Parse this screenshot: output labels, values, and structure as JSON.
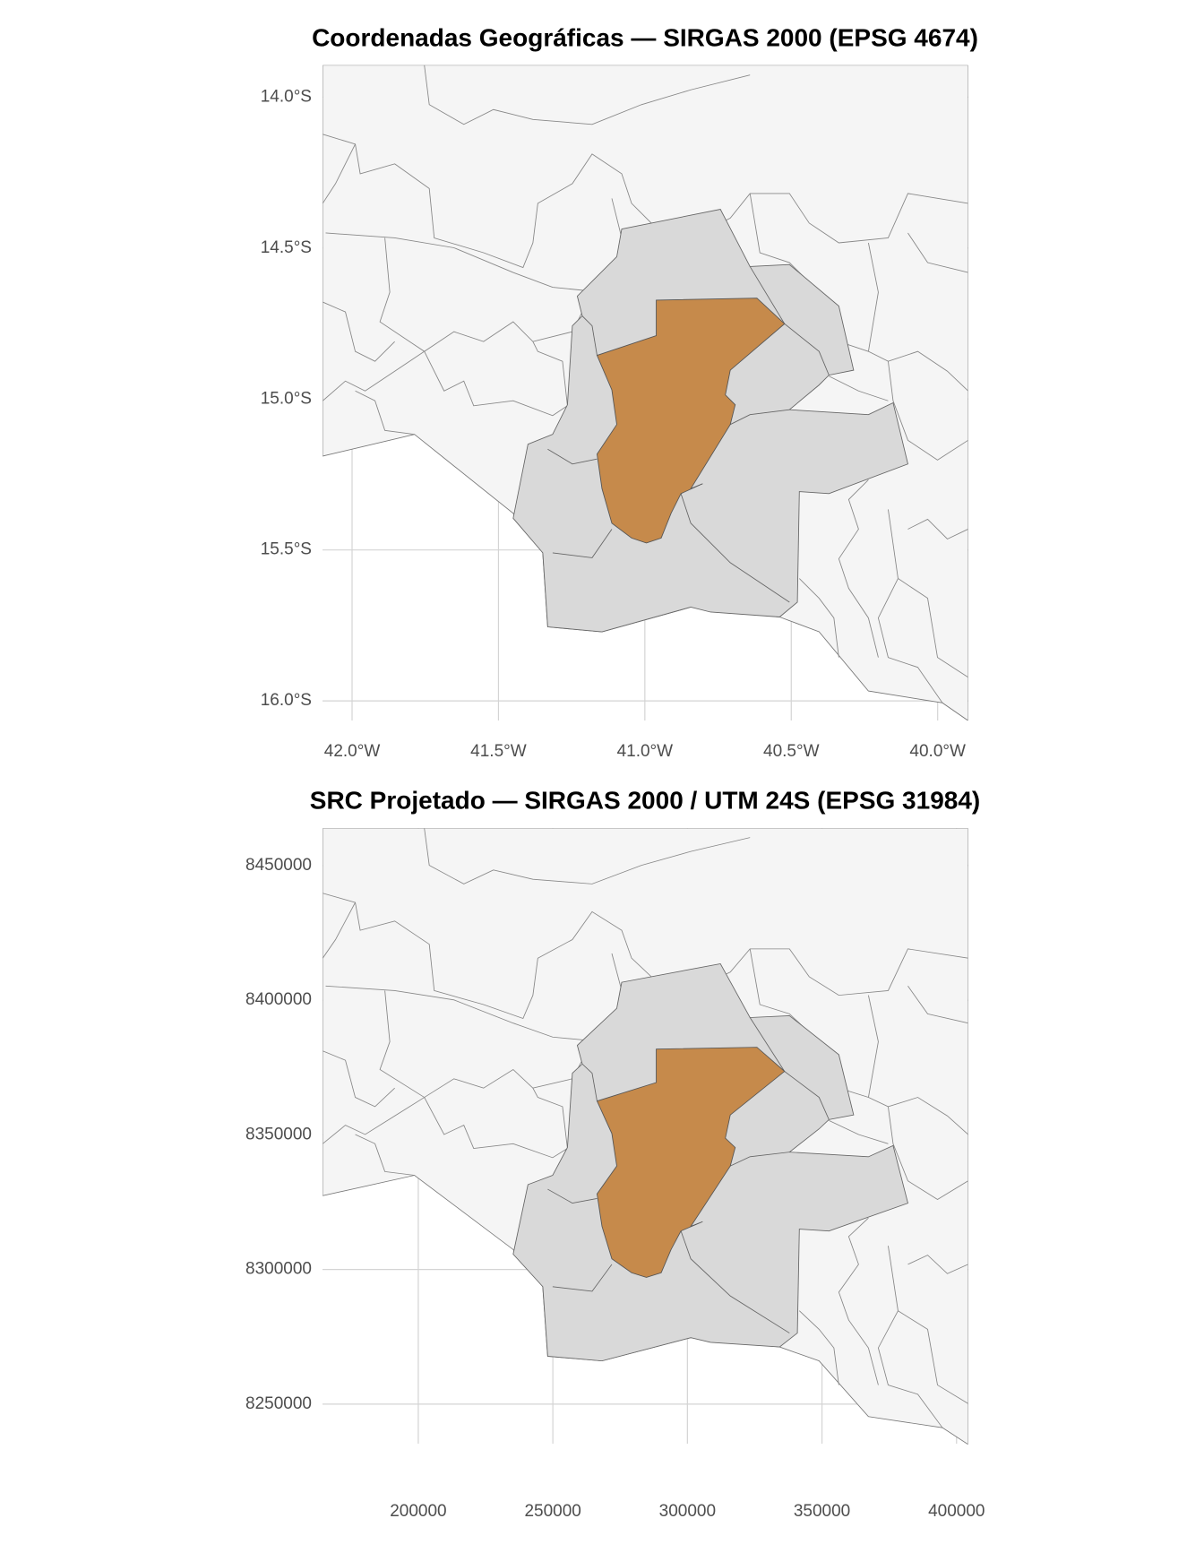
{
  "chart_data": [
    {
      "type": "map",
      "title": "Coordenadas Geográficas — SIRGAS 2000 (EPSG 4674)",
      "xlim": [
        -42.101,
        -39.895
      ],
      "ylim": [
        -16.065,
        -13.895
      ],
      "xticks": [
        {
          "value": -42,
          "label": "42.0°W"
        },
        {
          "value": -41.5,
          "label": "41.5°W"
        },
        {
          "value": -41,
          "label": "41.0°W"
        },
        {
          "value": -40.5,
          "label": "40.5°W"
        },
        {
          "value": -40,
          "label": "40.0°W"
        }
      ],
      "yticks": [
        {
          "value": -14,
          "label": "14.0°S"
        },
        {
          "value": -14.5,
          "label": "14.5°S"
        },
        {
          "value": -15,
          "label": "15.0°S"
        },
        {
          "value": -15.5,
          "label": "15.5°S"
        },
        {
          "value": -16,
          "label": "16.0°S"
        }
      ],
      "grid": true
    },
    {
      "type": "map",
      "title": "SRC Projetado — SIRGAS 2000 / UTM 24S (EPSG 31984)",
      "xlim": [
        164404,
        404404
      ],
      "ylim": [
        8235321,
        8463945
      ],
      "xticks": [
        200000,
        250000,
        300000,
        350000,
        400000
      ],
      "yticks": [
        8250000,
        8300000,
        8350000,
        8400000,
        8450000
      ],
      "grid": true
    }
  ]
}
